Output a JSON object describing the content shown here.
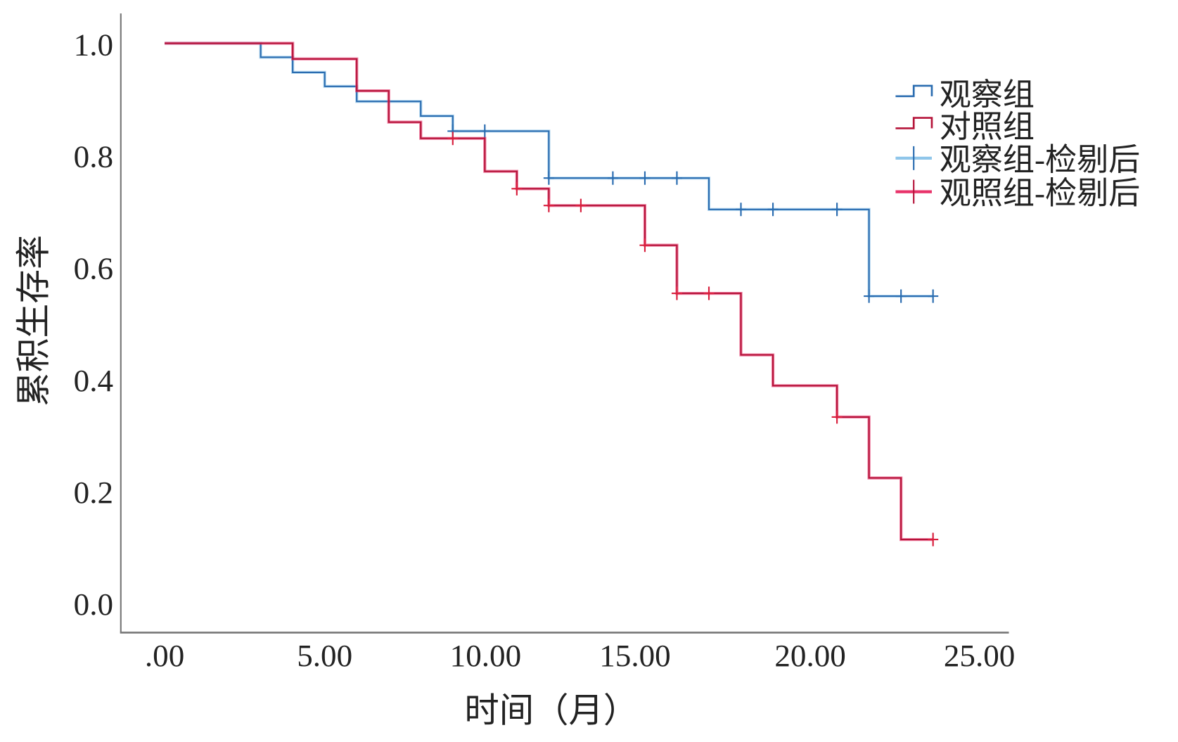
{
  "chart_data": {
    "type": "line",
    "subtype": "kaplan-meier step",
    "xlabel": "时间（月）",
    "ylabel": "累积生存率",
    "xlim": [
      0,
      25
    ],
    "ylim": [
      0,
      1.0
    ],
    "x_ticks": [
      ".00",
      "5.00",
      "10.00",
      "15.00",
      "20.00",
      "25.00"
    ],
    "x_tick_values": [
      0,
      5,
      10,
      15,
      20,
      25
    ],
    "y_ticks": [
      "0.0",
      "0.2",
      "0.4",
      "0.6",
      "0.8",
      "1.0"
    ],
    "y_tick_values": [
      0,
      0.2,
      0.4,
      0.6,
      0.8,
      1.0
    ],
    "grid": false,
    "legend_position": "top-right",
    "legend": [
      "观察组",
      "对照组",
      "观察组-检剔后",
      "观照组-检剔后"
    ],
    "series": [
      {
        "name": "观察组",
        "color": "#2a6cb0",
        "light_color": "#8fc6ea",
        "steps": [
          [
            0,
            1.0
          ],
          [
            3,
            0.975
          ],
          [
            4,
            0.948
          ],
          [
            5,
            0.923
          ],
          [
            6,
            0.896
          ],
          [
            8,
            0.87
          ],
          [
            9,
            0.843
          ],
          [
            12,
            0.759
          ],
          [
            17,
            0.703
          ],
          [
            22,
            0.548
          ]
        ],
        "end": 24,
        "censored": [
          [
            9,
            0.843
          ],
          [
            10,
            0.843
          ],
          [
            12,
            0.759
          ],
          [
            14,
            0.759
          ],
          [
            15,
            0.759
          ],
          [
            16,
            0.759
          ],
          [
            18,
            0.703
          ],
          [
            19,
            0.703
          ],
          [
            21,
            0.703
          ],
          [
            22,
            0.548
          ],
          [
            23,
            0.548
          ],
          [
            24,
            0.548
          ]
        ]
      },
      {
        "name": "对照组",
        "color": "#b5143a",
        "light_color": "#e8336a",
        "steps": [
          [
            0,
            1.0
          ],
          [
            4,
            0.972
          ],
          [
            6,
            0.915
          ],
          [
            7,
            0.859
          ],
          [
            8,
            0.83
          ],
          [
            10,
            0.771
          ],
          [
            11,
            0.74
          ],
          [
            12,
            0.71
          ],
          [
            15,
            0.639
          ],
          [
            16,
            0.553
          ],
          [
            18,
            0.443
          ],
          [
            19,
            0.388
          ],
          [
            21,
            0.332
          ],
          [
            22,
            0.223
          ],
          [
            23,
            0.113
          ]
        ],
        "end": 24,
        "censored": [
          [
            9,
            0.83
          ],
          [
            11,
            0.74
          ],
          [
            12,
            0.71
          ],
          [
            13,
            0.71
          ],
          [
            15,
            0.639
          ],
          [
            16,
            0.553
          ],
          [
            17,
            0.553
          ],
          [
            21,
            0.332
          ],
          [
            24,
            0.113
          ]
        ]
      }
    ]
  }
}
